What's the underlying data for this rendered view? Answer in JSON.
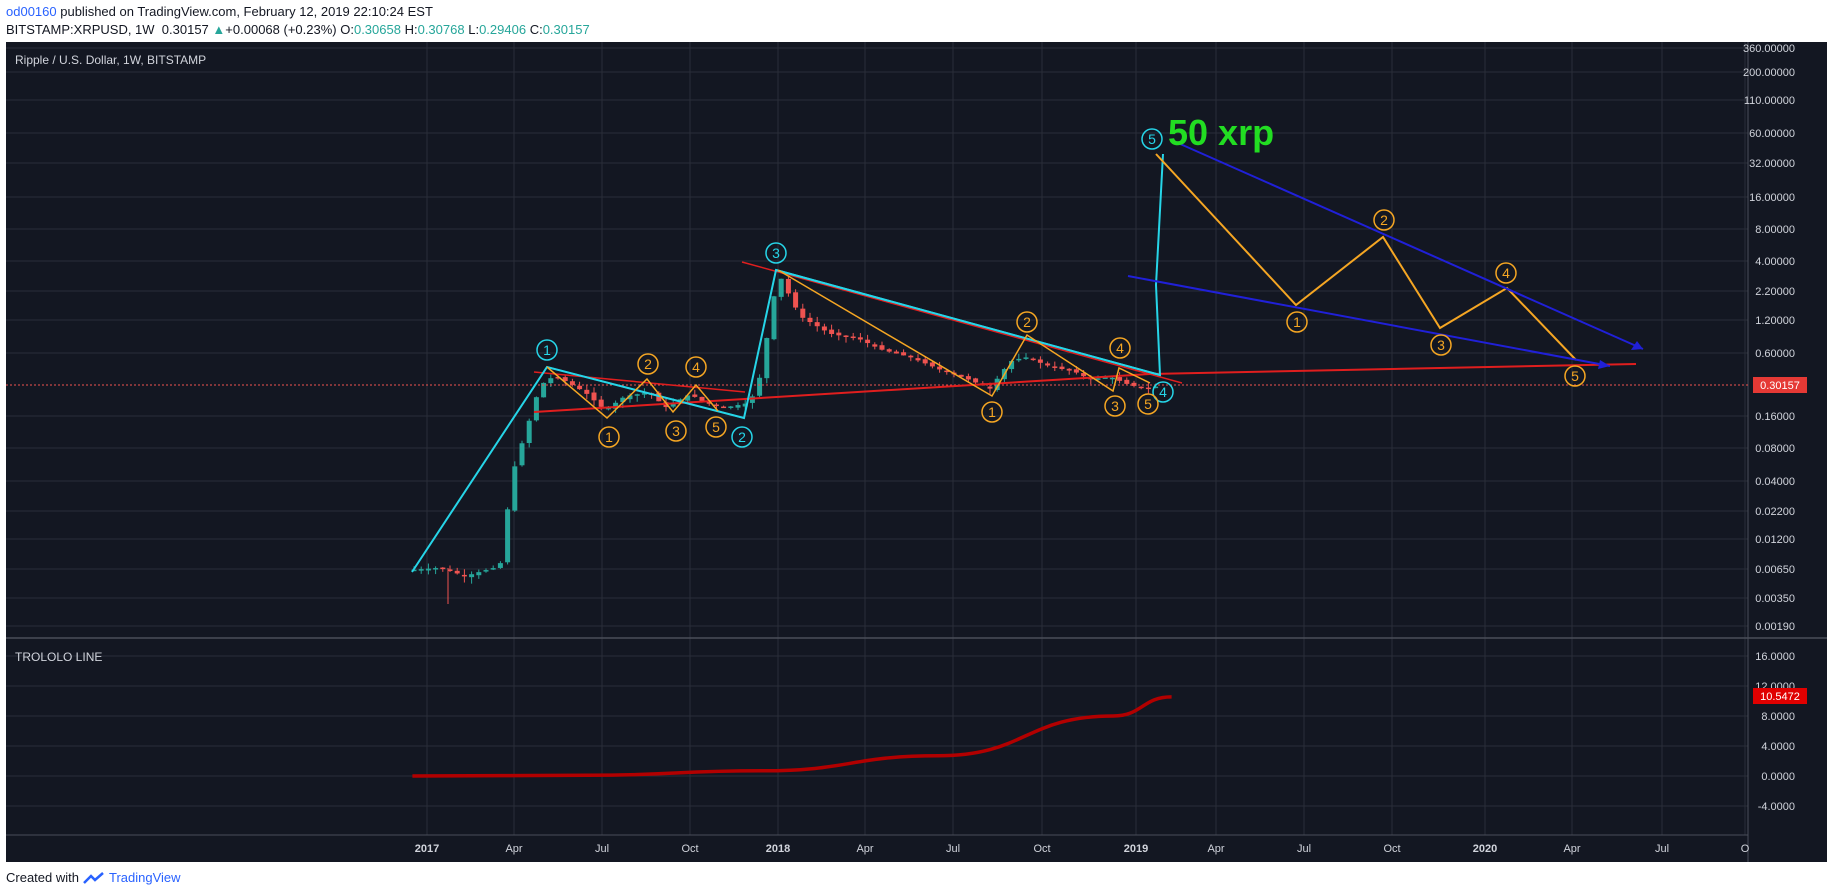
{
  "header": {
    "author": "od00160",
    "published": " published on TradingView.com, February 12, 2019 22:10:24 EST",
    "symbol": "BITSTAMP:XRPUSD, 1W",
    "last": "0.30157",
    "change_arrow": "▲",
    "change": "+0.00068 (+0.23%)",
    "o_label": "O:",
    "o": "0.30658",
    "h_label": "H:",
    "h": "0.30768",
    "l_label": "L:",
    "l": "0.29406",
    "c_label": "C:",
    "c": "0.30157"
  },
  "footer": {
    "created_with": "Created with",
    "brand": "TradingView"
  },
  "colors": {
    "background": "#131722",
    "grid": "#2a2e39",
    "up": "#26a69a",
    "down": "#ef5350",
    "cyan_wave": "#26d5e8",
    "orange_wave": "#f5a623",
    "trend_red": "#e01e1e",
    "blue_channel": "#2020d8",
    "annotation_green": "#22dd22",
    "indicator": "#b20000"
  },
  "chart_data": [
    {
      "type": "candlestick",
      "title": "Ripple / U.S. Dollar, 1W, BITSTAMP",
      "scale": "log",
      "y_ticks": [
        "360.00000",
        "200.00000",
        "110.00000",
        "60.00000",
        "32.00000",
        "16.00000",
        "8.00000",
        "4.00000",
        "2.20000",
        "1.20000",
        "0.60000",
        "0.30157",
        "0.16000",
        "0.08000",
        "0.04000",
        "0.02200",
        "0.01200",
        "0.00650",
        "0.00350",
        "0.00190"
      ],
      "last_price_label": "0.30157",
      "x_ticks": [
        "2017",
        "Apr",
        "Jul",
        "Oct",
        "2018",
        "Apr",
        "Jul",
        "Oct",
        "2019",
        "Apr",
        "Jul",
        "Oct",
        "2020",
        "Apr",
        "Jul",
        "O"
      ],
      "annotation": "50 xrp",
      "wave_labels_cyan": [
        "1",
        "2",
        "3",
        "4",
        "5"
      ],
      "wave_labels_orange_small": [
        "1",
        "2",
        "3",
        "4",
        "5"
      ],
      "wave_labels_orange_2018": [
        "1",
        "2",
        "3",
        "4",
        "5"
      ],
      "wave_labels_orange_forecast": [
        "1",
        "2",
        "3",
        "4",
        "5"
      ],
      "price_path_approx": [
        {
          "x": "2016-12",
          "y": 0.0065
        },
        {
          "x": "2017-03",
          "y": 0.0065
        },
        {
          "x": "2017-04",
          "y": 0.04
        },
        {
          "x": "2017-05",
          "y": 0.36
        },
        {
          "x": "2017-07",
          "y": 0.16
        },
        {
          "x": "2017-08",
          "y": 0.26
        },
        {
          "x": "2017-09",
          "y": 0.17
        },
        {
          "x": "2017-10",
          "y": 0.25
        },
        {
          "x": "2017-11",
          "y": 0.2
        },
        {
          "x": "2018-01",
          "y": 3.3
        },
        {
          "x": "2018-04",
          "y": 0.9
        },
        {
          "x": "2018-08",
          "y": 0.27
        },
        {
          "x": "2018-09",
          "y": 0.6
        },
        {
          "x": "2018-12",
          "y": 0.3
        },
        {
          "x": "2019-02",
          "y": 0.30157
        }
      ]
    },
    {
      "type": "line",
      "title": "TROLOLO LINE",
      "y_ticks": [
        "16.0000",
        "12.0000",
        "8.0000",
        "4.0000",
        "0.0000",
        "-4.0000"
      ],
      "last_value_label": "10.5472",
      "x": [
        "2016-12",
        "2017-06",
        "2017-12",
        "2018-06",
        "2018-12",
        "2019-02"
      ],
      "y": [
        0.0,
        0.1,
        0.7,
        2.7,
        8.0,
        10.5472
      ]
    }
  ]
}
